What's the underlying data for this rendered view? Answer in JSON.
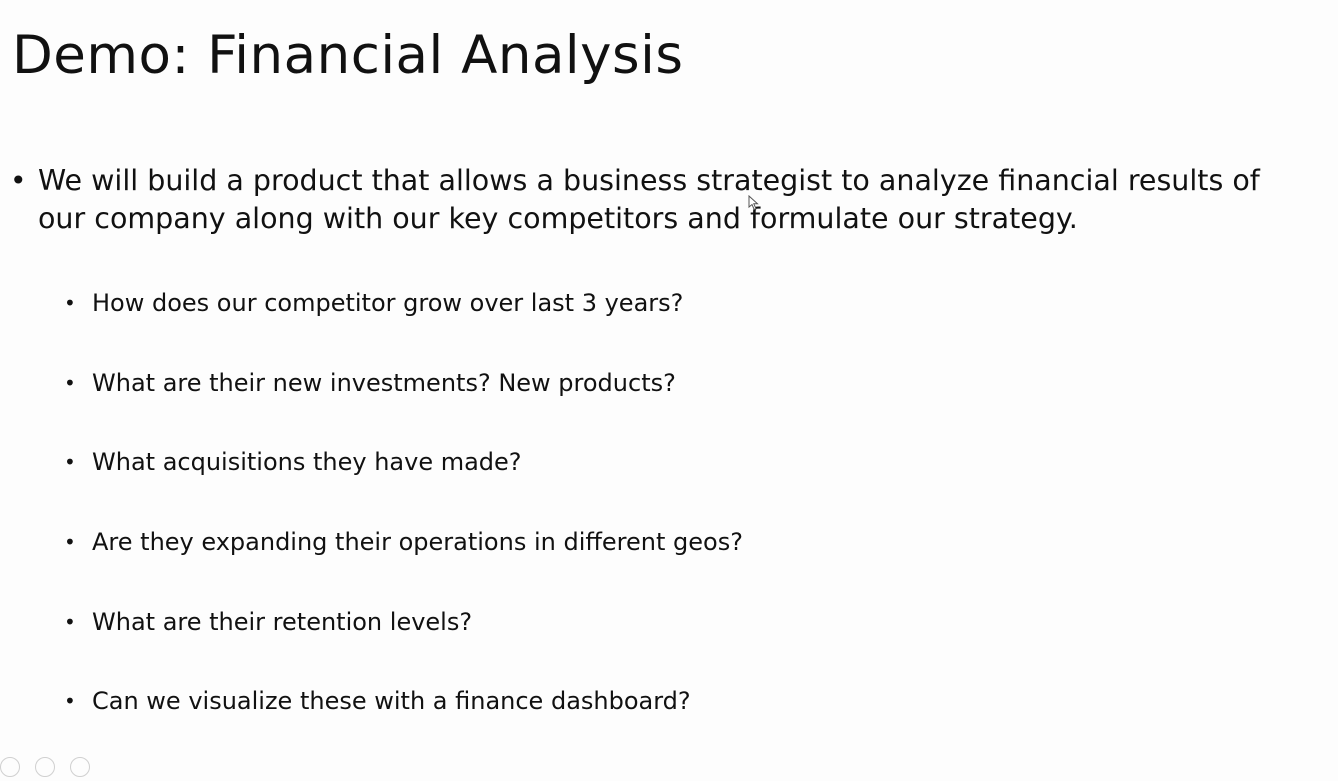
{
  "slide": {
    "title": "Demo: Financial Analysis",
    "main_bullet_glyph": "•",
    "main_point": "We will build a product that allows a business strategist to analyze financial results of our company along with our key competitors and formulate our strategy.",
    "sub_bullet_glyph": "•",
    "sub_points": [
      "How does our competitor grow over last 3 years?",
      "What are their new investments? New products?",
      "What acquisitions they have made?",
      "Are they expanding their operations in different geos?",
      "What are their retention levels?",
      "Can we visualize these with a finance dashboard?"
    ]
  }
}
